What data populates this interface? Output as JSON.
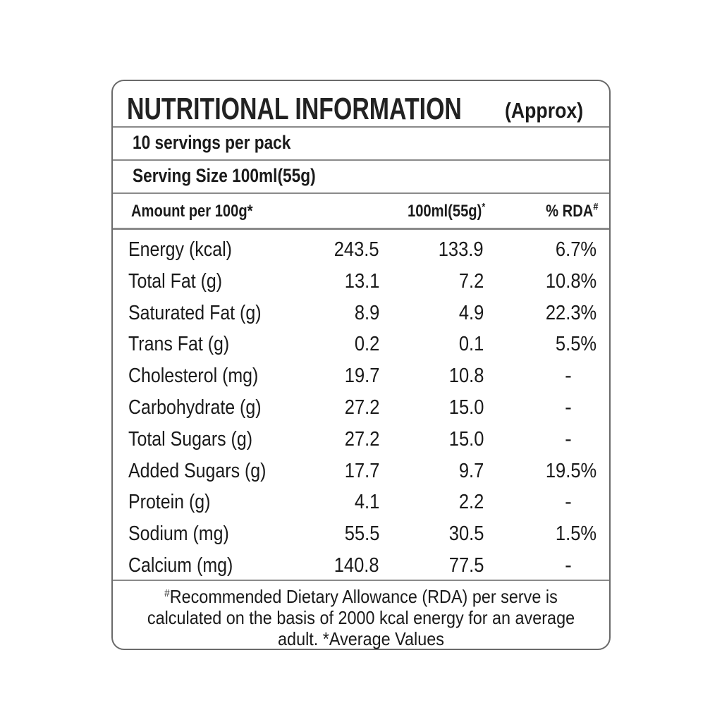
{
  "title": "NUTRITIONAL INFORMATION",
  "subtitle": "(Approx)",
  "servings": "10 servings per pack",
  "serving_size": "Serving Size 100ml(55g)",
  "header": {
    "amount": "Amount per 100g*",
    "per_serve": {
      "text": "100ml(55g)",
      "mark": "*"
    },
    "rda": {
      "text": "% RDA",
      "mark": "#"
    }
  },
  "rows": [
    [
      "Energy (kcal)",
      "243.5",
      "133.9",
      "6.7%"
    ],
    [
      "Total Fat (g)",
      "13.1",
      "7.2",
      "10.8%"
    ],
    [
      "Saturated Fat (g)",
      "8.9",
      "4.9",
      "22.3%"
    ],
    [
      "Trans Fat (g)",
      "0.2",
      "0.1",
      "5.5%"
    ],
    [
      "Cholesterol (mg)",
      "19.7",
      "10.8",
      "-"
    ],
    [
      "Carbohydrate (g)",
      "27.2",
      "15.0",
      "-"
    ],
    [
      "Total Sugars (g)",
      "27.2",
      "15.0",
      "-"
    ],
    [
      "Added Sugars (g)",
      "17.7",
      "9.7",
      "19.5%"
    ],
    [
      "Protein (g)",
      "4.1",
      "2.2",
      "-"
    ],
    [
      "Sodium (mg)",
      "55.5",
      "30.5",
      "1.5%"
    ],
    [
      "Calcium (mg)",
      "140.8",
      "77.5",
      "-"
    ]
  ],
  "footnote": {
    "mark": "#",
    "text": "Recommended Dietary Allowance (RDA) per serve is calculated on the basis of 2000 kcal energy for an average adult. *Average Values"
  }
}
